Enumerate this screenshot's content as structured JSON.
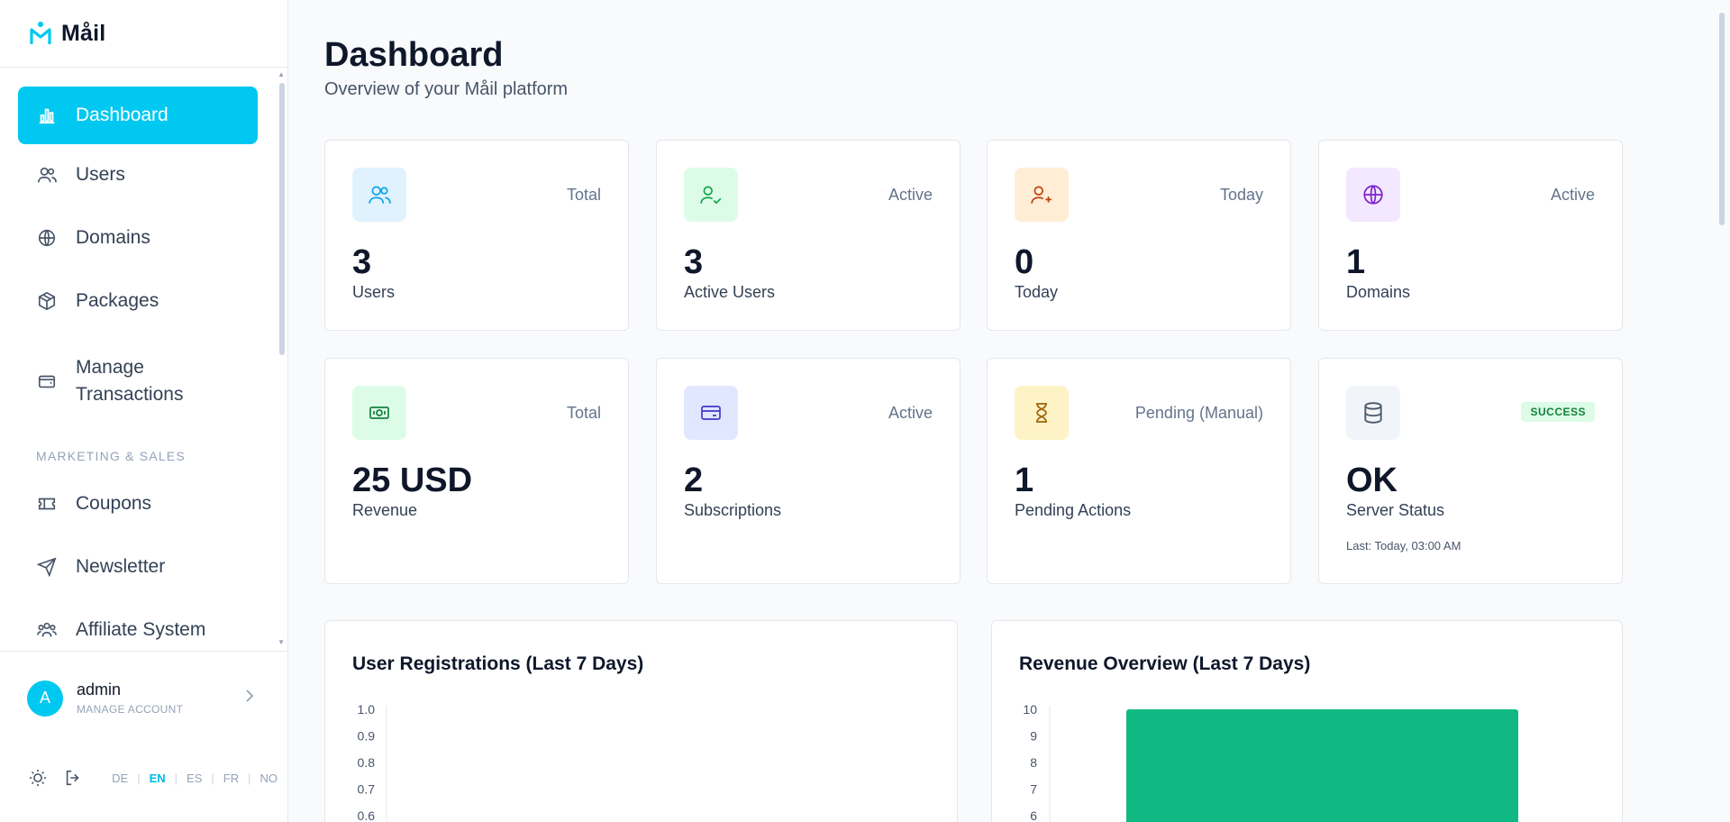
{
  "brand": {
    "name": "Måil"
  },
  "sidebar": {
    "items": [
      {
        "label": "Dashboard",
        "icon": "bar-chart-icon"
      },
      {
        "label": "Users",
        "icon": "users-icon"
      },
      {
        "label": "Domains",
        "icon": "globe-icon"
      },
      {
        "label": "Packages",
        "icon": "package-icon"
      },
      {
        "label": "Manage Transactions",
        "icon": "wallet-icon"
      },
      {
        "label": "Coupons",
        "icon": "ticket-icon"
      },
      {
        "label": "Newsletter",
        "icon": "send-icon"
      },
      {
        "label": "Affiliate System",
        "icon": "affiliate-icon"
      }
    ],
    "section_marketing": "MARKETING & SALES"
  },
  "account": {
    "avatar_letter": "A",
    "name": "admin",
    "sub": "MANAGE ACCOUNT"
  },
  "languages": [
    "DE",
    "EN",
    "ES",
    "FR",
    "NO"
  ],
  "active_language": "EN",
  "header": {
    "title": "Dashboard",
    "subtitle": "Overview of your Måil platform"
  },
  "stats": [
    {
      "tag": "Total",
      "value": "3",
      "label": "Users",
      "icon": "users-icon",
      "color": "#0ea5e9",
      "bg": "#e0f2fe"
    },
    {
      "tag": "Active",
      "value": "3",
      "label": "Active Users",
      "icon": "user-check-icon",
      "color": "#16a34a",
      "bg": "#dcfce7"
    },
    {
      "tag": "Today",
      "value": "0",
      "label": "Today",
      "icon": "user-plus-icon",
      "color": "#c2410c",
      "bg": "#ffedd5"
    },
    {
      "tag": "Active",
      "value": "1",
      "label": "Domains",
      "icon": "globe-icon",
      "color": "#7e22ce",
      "bg": "#f3e8ff"
    },
    {
      "tag": "Total",
      "value": "25 USD",
      "label": "Revenue",
      "icon": "banknote-icon",
      "color": "#15803d",
      "bg": "#dcfce7"
    },
    {
      "tag": "Active",
      "value": "2",
      "label": "Subscriptions",
      "icon": "credit-card-icon",
      "color": "#4338ca",
      "bg": "#e0e7ff"
    },
    {
      "tag": "Pending (Manual)",
      "value": "1",
      "label": "Pending Actions",
      "icon": "hourglass-icon",
      "color": "#a16207",
      "bg": "#fef3c7"
    },
    {
      "badge": "SUCCESS",
      "value": "OK",
      "label": "Server Status",
      "note": "Last: Today, 03:00 AM",
      "icon": "database-icon",
      "color": "#475569",
      "bg": "#f1f5f9"
    }
  ],
  "chart_data": [
    {
      "type": "line",
      "title": "User Registrations (Last 7 Days)",
      "yticks": [
        "1.0",
        "0.9",
        "0.8",
        "0.7",
        "0.6"
      ],
      "ylim": [
        0,
        1
      ]
    },
    {
      "type": "bar",
      "title": "Revenue Overview (Last 7 Days)",
      "yticks": [
        "10",
        "9",
        "8",
        "7",
        "6"
      ],
      "ylim": [
        0,
        10
      ],
      "series": [
        {
          "values": [
            10
          ]
        }
      ],
      "bar_color": "#10b981"
    }
  ]
}
